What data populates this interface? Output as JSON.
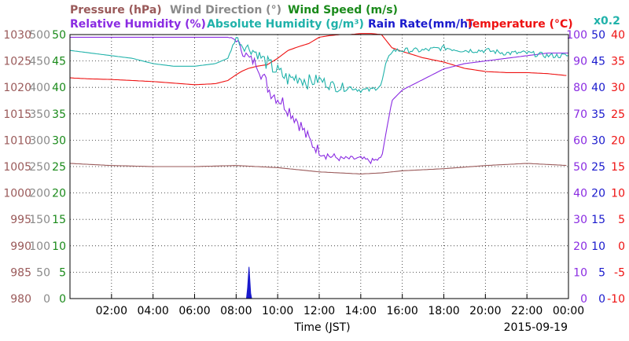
{
  "header": {
    "row1": [
      {
        "label": "Pressure (hPa)",
        "color": "#9a5a5a"
      },
      {
        "label": "Wind Direction (°)",
        "color": "#8a8a8a"
      },
      {
        "label": "Wind Speed (m/s)",
        "color": "#1a8a1a"
      }
    ],
    "row2": [
      {
        "label": "Relative Humidity (%)",
        "color": "#8a2be2"
      },
      {
        "label": "Absolute Humidity (g/m³)",
        "color": "#20b2aa"
      },
      {
        "label": "Rain Rate(mm/h)",
        "color": "#1a1acd"
      },
      {
        "label": "Temperature (°C)",
        "color": "#ee1111"
      }
    ],
    "multiplier": "x0.2",
    "multiplier_color": "#20b2aa"
  },
  "xaxis": {
    "label": "Time (JST)",
    "date": "2015-09-19",
    "ticks": [
      "02:00",
      "04:00",
      "06:00",
      "08:00",
      "10:00",
      "12:00",
      "14:00",
      "16:00",
      "18:00",
      "20:00",
      "22:00",
      "00:00"
    ]
  },
  "left_axes": [
    {
      "name": "pressure",
      "color": "#9a5a5a",
      "labels": [
        "1030",
        "1025",
        "1020",
        "1015",
        "1010",
        "1005",
        "1000",
        "995",
        "990",
        "985",
        "980"
      ]
    },
    {
      "name": "wind-direction",
      "color": "#8a8a8a",
      "labels": [
        "500",
        "450",
        "400",
        "350",
        "300",
        "250",
        "200",
        "150",
        "100",
        "50",
        "0"
      ]
    },
    {
      "name": "wind-speed",
      "color": "#1a8a1a",
      "labels": [
        "50",
        "45",
        "40",
        "35",
        "30",
        "25",
        "20",
        "15",
        "10",
        "5",
        "0"
      ]
    }
  ],
  "right_axes": [
    {
      "name": "relative-humidity",
      "color": "#8a2be2",
      "labels": [
        "100",
        "90",
        "80",
        "70",
        "60",
        "50",
        "40",
        "30",
        "20",
        "10",
        "0"
      ]
    },
    {
      "name": "rain-rate",
      "color": "#1a1acd",
      "labels": [
        "50",
        "45",
        "40",
        "35",
        "30",
        "25",
        "20",
        "15",
        "10",
        "5",
        "0"
      ]
    },
    {
      "name": "temperature",
      "color": "#ee1111",
      "labels": [
        "40",
        "35",
        "30",
        "25",
        "20",
        "15",
        "10",
        "5",
        "0",
        "-5",
        "-10"
      ]
    }
  ],
  "chart_data": {
    "type": "line",
    "x_range_hours": [
      0,
      24
    ],
    "y_range_grid": [
      0,
      100
    ],
    "grid": true,
    "series": [
      {
        "name": "Pressure (hPa)",
        "color": "#9a5a5a",
        "x": [
          0,
          2,
          4,
          6,
          8,
          10,
          12,
          14,
          15,
          16,
          18,
          20,
          22,
          24
        ],
        "y": [
          1005.6,
          1005.2,
          1005.0,
          1005.0,
          1005.2,
          1004.8,
          1004.0,
          1003.6,
          1003.8,
          1004.2,
          1004.6,
          1005.2,
          1005.6,
          1005.2
        ]
      },
      {
        "name": "Temperature (°C)",
        "color": "#ee1111",
        "x": [
          0,
          1,
          2,
          3,
          4,
          5,
          6,
          7,
          7.6,
          8,
          8.3,
          8.6,
          9,
          9.5,
          10,
          10.5,
          11,
          11.5,
          12,
          12.5,
          13,
          13.5,
          14,
          14.5,
          15,
          15.2,
          15.5,
          16,
          17,
          18,
          19,
          20,
          21,
          22,
          23,
          24
        ],
        "y": [
          31.8,
          31.6,
          31.5,
          31.3,
          31.1,
          30.8,
          30.5,
          30.7,
          31.3,
          32.4,
          33.1,
          33.6,
          34.0,
          34.3,
          35.5,
          37.0,
          37.7,
          38.3,
          39.5,
          39.8,
          40.0,
          40.0,
          40.2,
          40.2,
          40.0,
          39.0,
          37.5,
          36.8,
          35.6,
          34.8,
          33.6,
          33.0,
          32.8,
          32.8,
          32.6,
          32.2
        ]
      },
      {
        "name": "Relative Humidity (%)",
        "color": "#8a2be2",
        "x": [
          0,
          1,
          2,
          3,
          4,
          5,
          6,
          7,
          7.6,
          8,
          8.3,
          8.6,
          9,
          9.3,
          9.6,
          10,
          10.3,
          10.6,
          11,
          11.5,
          12,
          12.5,
          13,
          13.5,
          14,
          14.5,
          15,
          15.2,
          15.5,
          16,
          16.5,
          17,
          18,
          19,
          20,
          21,
          22,
          23,
          23.5,
          24
        ],
        "y": [
          99,
          99,
          99,
          99,
          99,
          99,
          99,
          99,
          99,
          98,
          94,
          91,
          89,
          84,
          79,
          76,
          74,
          71,
          67,
          60,
          56,
          54,
          53,
          53,
          53,
          52,
          53,
          62,
          75,
          79,
          81,
          83,
          87,
          89,
          90,
          91,
          92,
          93,
          93,
          93
        ],
        "noise": [
          0,
          0,
          0,
          0,
          0,
          0,
          0,
          0,
          0,
          1,
          2,
          2,
          2,
          3,
          3,
          3,
          3,
          3,
          3,
          3,
          2,
          2,
          1,
          1,
          1,
          1,
          1,
          0,
          0,
          0,
          0,
          0,
          0,
          0,
          0,
          0,
          0,
          0,
          0,
          0
        ]
      },
      {
        "name": "Absolute Humidity (g/m³) x0.2",
        "color": "#20b2aa",
        "x": [
          0,
          1,
          2,
          3,
          4,
          5,
          6,
          7,
          7.6,
          8,
          8.3,
          8.6,
          9,
          9.5,
          10,
          10.5,
          11,
          11.5,
          12,
          12.5,
          13,
          13.5,
          14,
          14.5,
          15,
          15.2,
          15.5,
          16,
          17,
          18,
          19,
          20,
          21,
          22,
          23,
          24
        ],
        "y": [
          94,
          93,
          92,
          91,
          89,
          88,
          88,
          89,
          91,
          99,
          96,
          95,
          93,
          89,
          86,
          83,
          84,
          82,
          83,
          81,
          80,
          80,
          79,
          79,
          81,
          89,
          94,
          94,
          94,
          95,
          94,
          94,
          93,
          93,
          92,
          92
        ],
        "noise": [
          0,
          0,
          0,
          0,
          0,
          0,
          0,
          0,
          0,
          1,
          2,
          2,
          2,
          3,
          3,
          3,
          3,
          3,
          2,
          2,
          2,
          1,
          1,
          1,
          1,
          0,
          1,
          1,
          1,
          1,
          1,
          1,
          1,
          1,
          1,
          1
        ]
      },
      {
        "name": "Rain Rate(mm/h)",
        "color": "#1a1acd",
        "x": [
          0,
          8.5,
          8.55,
          8.62,
          8.7,
          8.75,
          24
        ],
        "y": [
          0,
          0,
          2,
          6,
          1,
          0,
          0
        ]
      }
    ]
  }
}
